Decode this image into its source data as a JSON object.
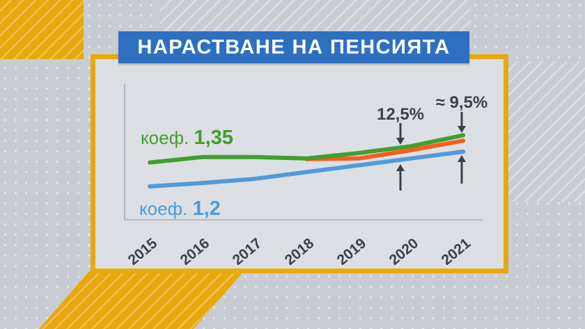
{
  "banner": {
    "title": "НАРАСТВАНЕ НА ПЕНСИЯТА"
  },
  "colors": {
    "banner_blue": "#2e6fc0",
    "frame_yellow": "#e8a80e",
    "line_green": "#3fa02c",
    "line_orange": "#fc5a1e",
    "line_blue": "#4e9bdb",
    "annotation_text": "#39414d",
    "axis": "#a3adc0",
    "card_bg": "#dcdfe3",
    "page_bg": "#c8ccd3"
  },
  "chart_data": {
    "type": "line",
    "title": "НАРАСТВАНЕ НА ПЕНСИЯТА",
    "x": [
      2015,
      2016,
      2017,
      2018,
      2019,
      2020,
      2021
    ],
    "x_tick_labels": [
      "2015",
      "2016",
      "2017",
      "2018",
      "2019",
      "2020",
      "2021"
    ],
    "ylim": [
      0,
      100
    ],
    "y_axis_labeled": false,
    "grid": false,
    "legend_position": "inline-left",
    "series": [
      {
        "name": "коеф. 1,35",
        "color": "#3fa02c",
        "values": [
          42,
          46,
          46,
          45,
          49,
          54,
          62
        ]
      },
      {
        "name": "",
        "color": "#fc5a1e",
        "values": [
          null,
          null,
          null,
          44.5,
          45,
          51,
          58
        ]
      },
      {
        "name": "коеф. 1,2",
        "color": "#4e9bdb",
        "values": [
          24.5,
          27,
          30,
          35,
          40,
          45,
          50
        ]
      }
    ],
    "series_labels": [
      {
        "prefix": "коеф.",
        "value": "1,35",
        "color": "#3fa02c"
      },
      {
        "prefix": "коеф.",
        "value": "1,2",
        "color": "#4e9bdb"
      }
    ],
    "pointers": [
      {
        "label": "12,5%",
        "direction": "down",
        "at_year": 2020
      },
      {
        "label": "≈ 9,5%",
        "direction": "down",
        "at_year": 2021
      },
      {
        "label": "",
        "direction": "up",
        "at_year": 2020
      },
      {
        "label": "",
        "direction": "up",
        "at_year": 2021
      }
    ]
  }
}
